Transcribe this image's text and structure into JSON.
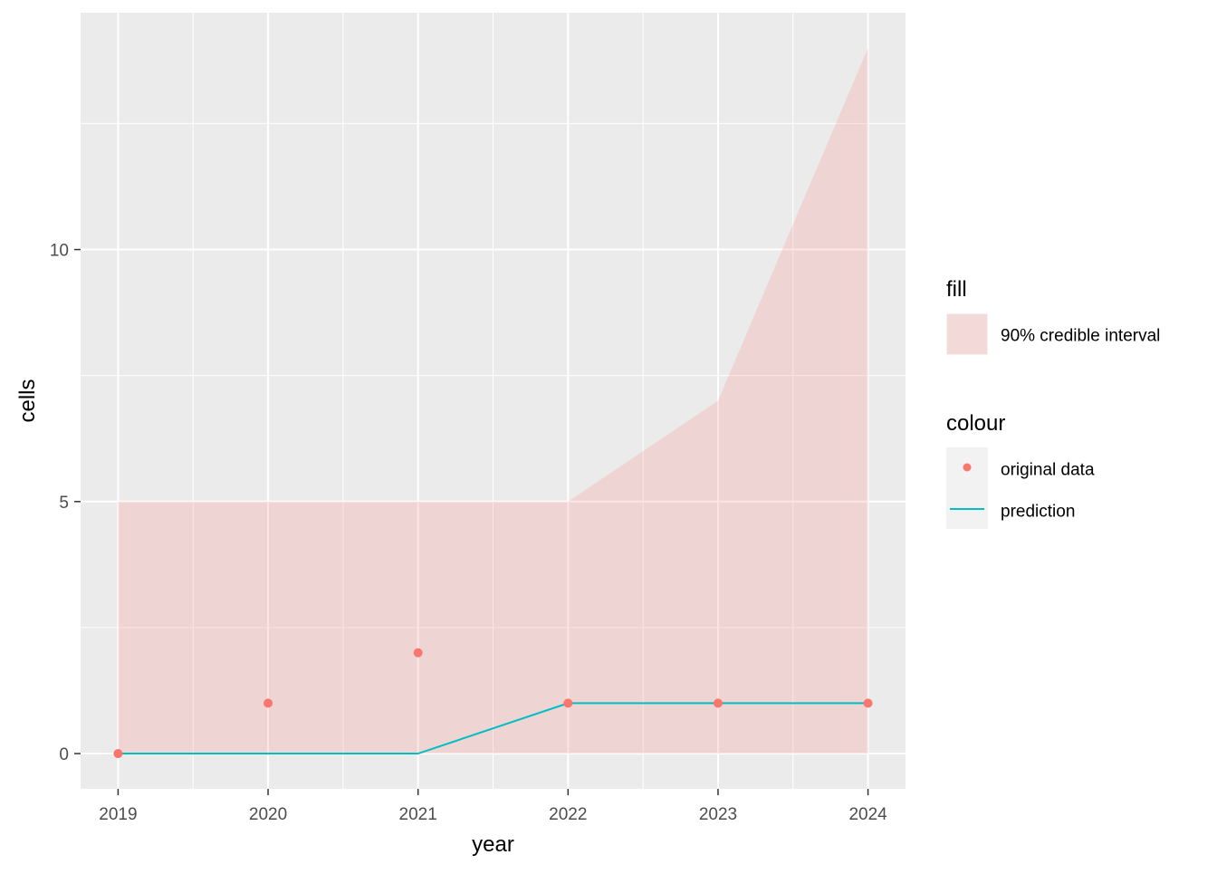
{
  "chart_data": {
    "type": "line",
    "xlabel": "year",
    "ylabel": "cells",
    "x": [
      2019,
      2020,
      2021,
      2022,
      2023,
      2024
    ],
    "x_tick_labels": [
      "2019",
      "2020",
      "2021",
      "2022",
      "2023",
      "2024"
    ],
    "y_ticks": [
      0,
      5,
      10
    ],
    "y_tick_labels": [
      "0",
      "5",
      "10"
    ],
    "xlim": [
      2018.75,
      2024.25
    ],
    "ylim": [
      -0.7,
      14.7
    ],
    "grid": true,
    "legend_position": "right",
    "series": [
      {
        "name": "original data",
        "kind": "points",
        "values": [
          0,
          1,
          2,
          1,
          1,
          1
        ],
        "color": "#F8766D"
      },
      {
        "name": "prediction",
        "kind": "line",
        "values": [
          0,
          0,
          0,
          1,
          1,
          1
        ],
        "color": "#00BFC4"
      }
    ],
    "band": {
      "name": "90% credible interval",
      "lower": [
        0,
        0,
        0,
        0,
        0,
        0
      ],
      "upper": [
        5,
        5,
        5,
        5,
        7,
        14
      ],
      "color": "#F8766D",
      "opacity": 0.2
    },
    "legend": {
      "fill_title": "fill",
      "fill_label": "90% credible interval",
      "colour_title": "colour",
      "colour_labels": [
        "original data",
        "prediction"
      ]
    }
  }
}
